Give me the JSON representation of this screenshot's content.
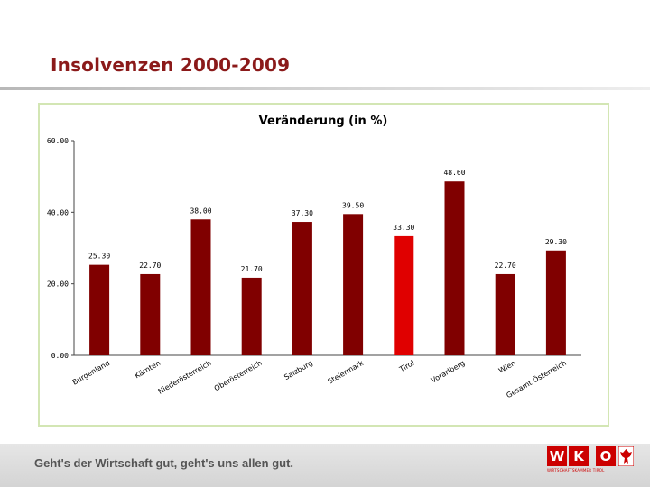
{
  "slide": {
    "title": "Insolvenzen 2000-2009"
  },
  "chart_data": {
    "type": "bar",
    "title": "Veränderung (in %)",
    "categories": [
      "Burgenland",
      "Kärnten",
      "Niederösterreich",
      "Oberösterreich",
      "Salzburg",
      "Steiermark",
      "Tirol",
      "Vorarlberg",
      "Wien",
      "Gesamt Österreich"
    ],
    "values": [
      25.3,
      22.7,
      38.0,
      21.7,
      37.3,
      39.5,
      33.3,
      48.6,
      22.7,
      29.3
    ],
    "data_labels": [
      "25.30",
      "22.70",
      "38.00",
      "21.70",
      "37.30",
      "39.50",
      "33.30",
      "48.60",
      "22.70",
      "29.30"
    ],
    "y_ticks": [
      0,
      20,
      40,
      60
    ],
    "y_tick_labels": [
      "0.00",
      "20.00",
      "40.00",
      "60.00"
    ],
    "ylim": [
      0,
      60
    ],
    "xlabel": "",
    "ylabel": "",
    "grid": false,
    "bar_color": "#800000",
    "highlight_index": 6,
    "highlight_color": "#e00000"
  },
  "footer": {
    "slogan": "Geht's der Wirtschaft gut, geht's uns allen gut.",
    "logo": {
      "letters": [
        "W",
        "K",
        "O"
      ],
      "subtitle": "WIRTSCHAFTSKAMMER TIROL"
    }
  },
  "colors": {
    "title": "#8b1a1a",
    "frame": "#d3e6b4",
    "brand": "#cc0000"
  }
}
